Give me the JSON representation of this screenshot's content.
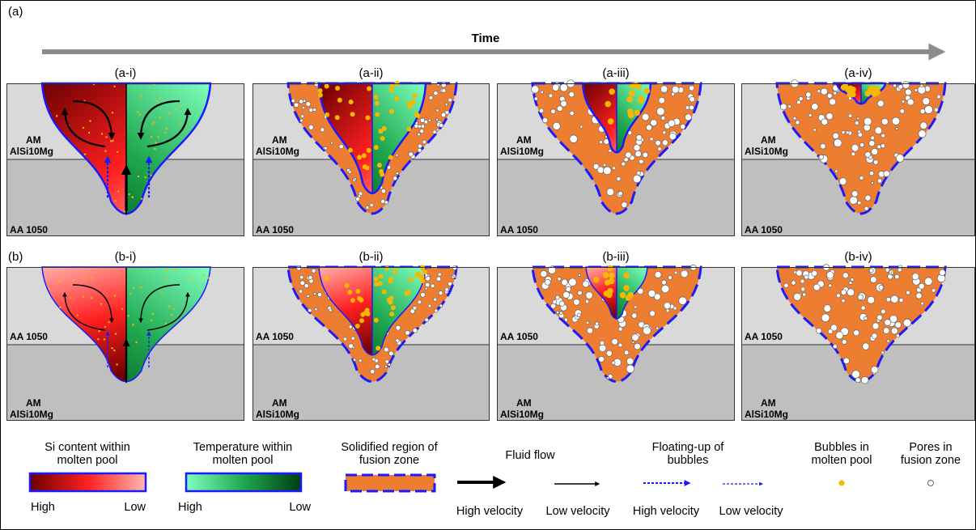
{
  "time_label": "Time",
  "rows": [
    {
      "label": "(a)",
      "panels": [
        {
          "label": "(a-i)",
          "top_material": [
            "AM",
            "AlSi10Mg"
          ],
          "bottom_material": [
            "AA 1050"
          ]
        },
        {
          "label": "(a-ii)",
          "top_material": [
            "AM",
            "AlSi10Mg"
          ],
          "bottom_material": [
            "AA 1050"
          ]
        },
        {
          "label": "(a-iii)",
          "top_material": [
            "AM",
            "AlSi10Mg"
          ],
          "bottom_material": [
            "AA 1050"
          ]
        },
        {
          "label": "(a-iv)",
          "top_material": [
            "AM",
            "AlSi10Mg"
          ],
          "bottom_material": [
            "AA 1050"
          ]
        }
      ]
    },
    {
      "label": "(b)",
      "panels": [
        {
          "label": "(b-i)",
          "top_material": [
            "AA 1050"
          ],
          "bottom_material": [
            "AM",
            "AlSi10Mg"
          ]
        },
        {
          "label": "(b-ii)",
          "top_material": [
            "AA 1050"
          ],
          "bottom_material": [
            "AM",
            "AlSi10Mg"
          ]
        },
        {
          "label": "(b-iii)",
          "top_material": [
            "AA 1050"
          ],
          "bottom_material": [
            "AM",
            "AlSi10Mg"
          ]
        },
        {
          "label": "(b-iv)",
          "top_material": [
            "AA 1050"
          ],
          "bottom_material": [
            "AM",
            "AlSi10Mg"
          ]
        }
      ]
    }
  ],
  "legend": {
    "si": {
      "title": [
        "Si content within",
        "molten pool"
      ],
      "high": "High",
      "low": "Low"
    },
    "temperature": {
      "title": [
        "Temperature within",
        "molten pool"
      ],
      "high": "High",
      "low": "Low"
    },
    "solidified": {
      "title": [
        "Solidified region of",
        "fusion zone"
      ]
    },
    "fluid_flow": {
      "title": [
        "Fluid flow"
      ],
      "high": "High velocity",
      "low": "Low velocity"
    },
    "floating": {
      "title": [
        "Floating-up of",
        "bubbles"
      ],
      "high": "High velocity",
      "low": "Low velocity"
    },
    "bubbles": {
      "title": [
        "Bubbles in",
        "molten pool"
      ]
    },
    "pores": {
      "title": [
        "Pores in",
        "fusion zone"
      ]
    }
  }
}
